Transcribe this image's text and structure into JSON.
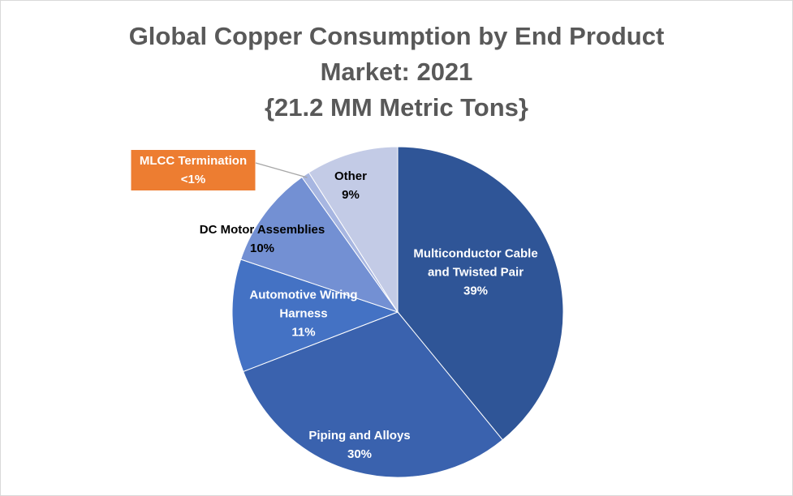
{
  "chart_data": {
    "type": "pie",
    "title": "Global Copper Consumption by End Product Market: 2021",
    "subtitle": "{21.2 MM Metric Tons}",
    "categories": [
      "Multiconductor Cable and Twisted Pair",
      "Piping and Alloys",
      "Automotive Wiring Harness",
      "DC Motor Assemblies",
      "MLCC Termination",
      "Other"
    ],
    "values": [
      39,
      30,
      11,
      10,
      0.8,
      9
    ],
    "value_labels": [
      "39%",
      "30%",
      "11%",
      "10%",
      "<1%",
      "9%"
    ],
    "colors": [
      "#2f5597",
      "#3a62ae",
      "#4472c4",
      "#7390d3",
      "#a7b6e1",
      "#c3cbe6"
    ],
    "highlight_color": "#ed7d31"
  }
}
